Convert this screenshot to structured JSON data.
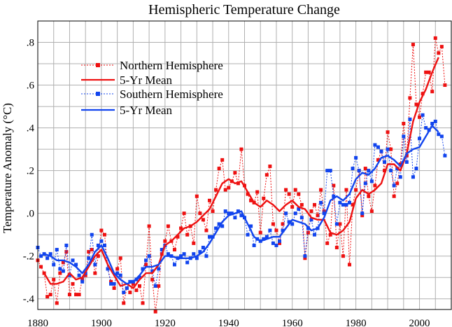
{
  "chart_data": {
    "type": "line",
    "title": "Hemispheric Temperature Change",
    "ylabel": "Temperature Anomaly (°C)",
    "xlabel": "",
    "xlim": [
      1880,
      2010
    ],
    "ylim": [
      -0.45,
      0.9
    ],
    "x_ticks": [
      1880,
      1900,
      1920,
      1940,
      1960,
      1980,
      2000
    ],
    "x_tick_labels": [
      "1880",
      "1900",
      "1920",
      "1940",
      "1960",
      "1980",
      "2000"
    ],
    "y_ticks": [
      -0.4,
      -0.2,
      0.0,
      0.2,
      0.4,
      0.6,
      0.8
    ],
    "y_tick_labels": [
      "-.4",
      "-.2",
      ".0",
      ".2",
      ".4",
      ".6",
      ".8"
    ],
    "grid": true,
    "legend_placement": "top-left",
    "colors": {
      "north": "#ee1111",
      "south": "#1144ee"
    },
    "series": [
      {
        "name": "Northern Hemisphere",
        "style": "dotted-square",
        "color": "#ee1111",
        "x": [
          1880,
          1881,
          1882,
          1883,
          1884,
          1885,
          1886,
          1887,
          1888,
          1889,
          1890,
          1891,
          1892,
          1893,
          1894,
          1895,
          1896,
          1897,
          1898,
          1899,
          1900,
          1901,
          1902,
          1903,
          1904,
          1905,
          1906,
          1907,
          1908,
          1909,
          1910,
          1911,
          1912,
          1913,
          1914,
          1915,
          1916,
          1917,
          1918,
          1919,
          1920,
          1921,
          1922,
          1923,
          1924,
          1925,
          1926,
          1927,
          1928,
          1929,
          1930,
          1931,
          1932,
          1933,
          1934,
          1935,
          1936,
          1937,
          1938,
          1939,
          1940,
          1941,
          1942,
          1943,
          1944,
          1945,
          1946,
          1947,
          1948,
          1949,
          1950,
          1951,
          1952,
          1953,
          1954,
          1955,
          1956,
          1957,
          1958,
          1959,
          1960,
          1961,
          1962,
          1963,
          1964,
          1965,
          1966,
          1967,
          1968,
          1969,
          1970,
          1971,
          1972,
          1973,
          1974,
          1975,
          1976,
          1977,
          1978,
          1979,
          1980,
          1981,
          1982,
          1983,
          1984,
          1985,
          1986,
          1987,
          1988,
          1989,
          1990,
          1991,
          1992,
          1993,
          1994,
          1995,
          1996,
          1997,
          1998,
          1999,
          2000,
          2001,
          2002,
          2003,
          2004,
          2005,
          2006,
          2007,
          2008
        ],
        "values": [
          -0.22,
          -0.25,
          -0.28,
          -0.39,
          -0.38,
          -0.31,
          -0.42,
          -0.28,
          -0.23,
          -0.18,
          -0.38,
          -0.33,
          -0.38,
          -0.38,
          -0.31,
          -0.29,
          -0.18,
          -0.17,
          -0.28,
          -0.2,
          -0.08,
          -0.1,
          -0.26,
          -0.32,
          -0.35,
          -0.26,
          -0.21,
          -0.42,
          -0.35,
          -0.37,
          -0.33,
          -0.36,
          -0.34,
          -0.42,
          -0.24,
          -0.06,
          -0.31,
          -0.46,
          -0.34,
          -0.19,
          -0.13,
          -0.06,
          -0.13,
          -0.17,
          -0.11,
          -0.07,
          0.0,
          -0.1,
          -0.06,
          -0.14,
          0.08,
          0.0,
          -0.03,
          -0.08,
          0.06,
          0.01,
          0.11,
          0.21,
          0.25,
          0.11,
          0.12,
          0.15,
          0.19,
          0.14,
          0.3,
          0.13,
          0.09,
          0.06,
          0.05,
          0.1,
          -0.09,
          0.07,
          0.18,
          0.22,
          -0.05,
          -0.08,
          -0.14,
          -0.05,
          0.11,
          0.09,
          0.03,
          0.11,
          0.09,
          0.04,
          -0.21,
          -0.09,
          0.01,
          0.04,
          -0.01,
          0.11,
          0.01,
          -0.14,
          -0.1,
          0.13,
          -0.16,
          -0.05,
          -0.2,
          0.11,
          -0.24,
          0.04,
          0.11,
          0.2,
          -0.01,
          0.21,
          0.08,
          0.01,
          0.13,
          0.25,
          0.29,
          0.2,
          0.38,
          0.3,
          0.08,
          0.14,
          0.23,
          0.42,
          0.27,
          0.54,
          0.79,
          0.51,
          0.45,
          0.56,
          0.66,
          0.66,
          0.57,
          0.82,
          0.75,
          0.78,
          0.6
        ]
      },
      {
        "name": "5-Yr Mean",
        "style": "solid",
        "color": "#ee1111",
        "x": [
          1882,
          1884,
          1886,
          1888,
          1890,
          1892,
          1894,
          1896,
          1898,
          1900,
          1902,
          1904,
          1906,
          1908,
          1910,
          1912,
          1914,
          1916,
          1918,
          1920,
          1922,
          1924,
          1926,
          1928,
          1930,
          1932,
          1934,
          1936,
          1938,
          1940,
          1942,
          1944,
          1946,
          1948,
          1950,
          1952,
          1954,
          1956,
          1958,
          1960,
          1962,
          1964,
          1966,
          1968,
          1970,
          1972,
          1974,
          1976,
          1978,
          1980,
          1982,
          1984,
          1986,
          1988,
          1990,
          1992,
          1994,
          1996,
          1998,
          2000,
          2002,
          2004,
          2006
        ],
        "values": [
          -0.28,
          -0.33,
          -0.33,
          -0.32,
          -0.28,
          -0.31,
          -0.3,
          -0.25,
          -0.2,
          -0.17,
          -0.24,
          -0.29,
          -0.34,
          -0.33,
          -0.35,
          -0.31,
          -0.28,
          -0.28,
          -0.24,
          -0.15,
          -0.13,
          -0.1,
          -0.07,
          -0.06,
          -0.04,
          -0.01,
          0.02,
          0.08,
          0.14,
          0.16,
          0.14,
          0.15,
          0.1,
          0.05,
          0.03,
          0.06,
          0.04,
          0.01,
          0.04,
          0.06,
          0.03,
          0.02,
          -0.02,
          -0.03,
          -0.03,
          -0.09,
          -0.1,
          -0.08,
          -0.04,
          0.07,
          0.11,
          0.09,
          0.11,
          0.14,
          0.23,
          0.23,
          0.2,
          0.28,
          0.43,
          0.52,
          0.58,
          0.66,
          0.73
        ]
      },
      {
        "name": "Southern Hemisphere",
        "style": "dotted-square",
        "color": "#1144ee",
        "x": [
          1880,
          1881,
          1882,
          1883,
          1884,
          1885,
          1886,
          1887,
          1888,
          1889,
          1890,
          1891,
          1892,
          1893,
          1894,
          1895,
          1896,
          1897,
          1898,
          1899,
          1900,
          1901,
          1902,
          1903,
          1904,
          1905,
          1906,
          1907,
          1908,
          1909,
          1910,
          1911,
          1912,
          1913,
          1914,
          1915,
          1916,
          1917,
          1918,
          1919,
          1920,
          1921,
          1922,
          1923,
          1924,
          1925,
          1926,
          1927,
          1928,
          1929,
          1930,
          1931,
          1932,
          1933,
          1934,
          1935,
          1936,
          1937,
          1938,
          1939,
          1940,
          1941,
          1942,
          1943,
          1944,
          1945,
          1946,
          1947,
          1948,
          1949,
          1950,
          1951,
          1952,
          1953,
          1954,
          1955,
          1956,
          1957,
          1958,
          1959,
          1960,
          1961,
          1962,
          1963,
          1964,
          1965,
          1966,
          1967,
          1968,
          1969,
          1970,
          1971,
          1972,
          1973,
          1974,
          1975,
          1976,
          1977,
          1978,
          1979,
          1980,
          1981,
          1982,
          1983,
          1984,
          1985,
          1986,
          1987,
          1988,
          1989,
          1990,
          1991,
          1992,
          1993,
          1994,
          1995,
          1996,
          1997,
          1998,
          1999,
          2000,
          2001,
          2002,
          2003,
          2004,
          2005,
          2006,
          2007,
          2008
        ],
        "values": [
          -0.16,
          -0.2,
          -0.19,
          -0.21,
          -0.19,
          -0.24,
          -0.17,
          -0.26,
          -0.27,
          -0.15,
          -0.29,
          -0.22,
          -0.24,
          -0.29,
          -0.32,
          -0.28,
          -0.21,
          -0.1,
          -0.24,
          -0.15,
          -0.13,
          -0.15,
          -0.26,
          -0.33,
          -0.33,
          -0.28,
          -0.29,
          -0.37,
          -0.35,
          -0.32,
          -0.32,
          -0.31,
          -0.3,
          -0.26,
          -0.22,
          -0.2,
          -0.27,
          -0.34,
          -0.26,
          -0.17,
          -0.15,
          -0.19,
          -0.2,
          -0.24,
          -0.21,
          -0.2,
          -0.19,
          -0.23,
          -0.21,
          -0.19,
          -0.21,
          -0.18,
          -0.16,
          -0.2,
          -0.11,
          -0.11,
          -0.07,
          -0.05,
          -0.06,
          0.01,
          0.0,
          0.0,
          -0.02,
          0.01,
          -0.01,
          -0.02,
          -0.1,
          -0.06,
          -0.15,
          -0.12,
          -0.13,
          -0.12,
          -0.11,
          -0.08,
          -0.14,
          -0.15,
          -0.13,
          -0.08,
          0.0,
          -0.04,
          -0.05,
          0.0,
          0.02,
          -0.02,
          -0.2,
          -0.07,
          -0.03,
          -0.1,
          -0.07,
          0.05,
          0.0,
          0.2,
          0.2,
          0.08,
          -0.05,
          0.05,
          0.04,
          0.04,
          0.05,
          0.21,
          0.26,
          0.2,
          0.0,
          0.14,
          0.2,
          0.15,
          0.32,
          0.31,
          0.29,
          0.24,
          0.3,
          0.2,
          0.13,
          0.21,
          0.17,
          0.36,
          0.24,
          0.44,
          0.17,
          0.21,
          0.35,
          0.46,
          0.4,
          0.39,
          0.42,
          0.43,
          0.37,
          0.36,
          0.27
        ]
      },
      {
        "name": "5-Yr Mean",
        "style": "solid",
        "color": "#1144ee",
        "x": [
          1882,
          1884,
          1886,
          1888,
          1890,
          1892,
          1894,
          1896,
          1898,
          1900,
          1902,
          1904,
          1906,
          1908,
          1910,
          1912,
          1914,
          1916,
          1918,
          1920,
          1922,
          1924,
          1926,
          1928,
          1930,
          1932,
          1934,
          1936,
          1938,
          1940,
          1942,
          1944,
          1946,
          1948,
          1950,
          1952,
          1954,
          1956,
          1958,
          1960,
          1962,
          1964,
          1966,
          1968,
          1970,
          1972,
          1974,
          1976,
          1978,
          1980,
          1982,
          1984,
          1986,
          1988,
          1990,
          1992,
          1994,
          1996,
          1998,
          2000,
          2002,
          2004,
          2006
        ],
        "values": [
          -0.19,
          -0.2,
          -0.22,
          -0.22,
          -0.23,
          -0.25,
          -0.28,
          -0.24,
          -0.18,
          -0.15,
          -0.21,
          -0.28,
          -0.31,
          -0.33,
          -0.32,
          -0.29,
          -0.25,
          -0.25,
          -0.24,
          -0.2,
          -0.2,
          -0.21,
          -0.21,
          -0.21,
          -0.2,
          -0.18,
          -0.14,
          -0.09,
          -0.04,
          -0.01,
          0.0,
          0.01,
          -0.05,
          -0.11,
          -0.13,
          -0.12,
          -0.11,
          -0.11,
          -0.07,
          -0.03,
          -0.04,
          -0.05,
          -0.08,
          -0.07,
          -0.02,
          0.06,
          0.08,
          0.06,
          0.09,
          0.16,
          0.19,
          0.18,
          0.21,
          0.26,
          0.27,
          0.25,
          0.22,
          0.28,
          0.3,
          0.31,
          0.36,
          0.41,
          0.38
        ]
      }
    ]
  }
}
